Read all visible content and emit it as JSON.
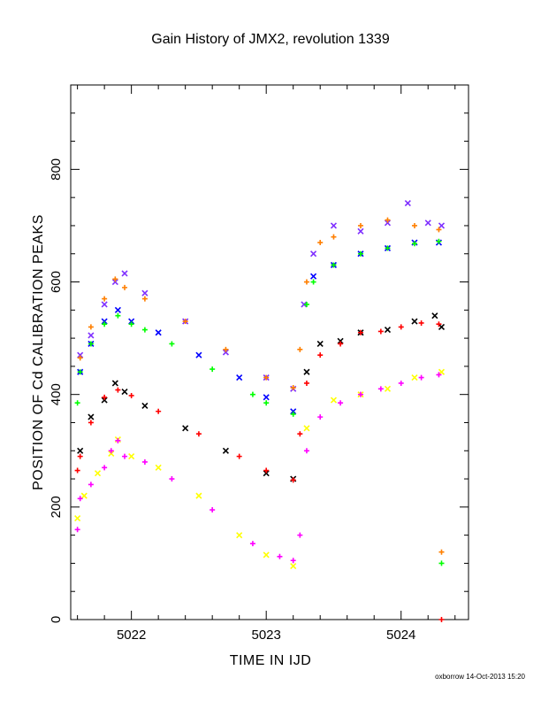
{
  "chart_data": {
    "type": "scatter",
    "title": "Gain History of JMX2, revolution 1339",
    "xlabel": "TIME IN IJD",
    "ylabel": "POSITION OF Cd CALIBRATION PEAKS",
    "xlim": [
      5021.55,
      5024.5
    ],
    "ylim": [
      0,
      950
    ],
    "x_ticks": [
      5022,
      5023,
      5024
    ],
    "y_ticks": [
      0,
      200,
      400,
      600,
      800
    ],
    "grid": false,
    "series": [
      {
        "color": "#7f2fff",
        "marker": "x",
        "points": [
          [
            5021.62,
            470
          ],
          [
            5021.7,
            505
          ],
          [
            5021.8,
            560
          ],
          [
            5021.88,
            600
          ],
          [
            5021.95,
            615
          ],
          [
            5022.1,
            580
          ],
          [
            5022.4,
            530
          ],
          [
            5022.7,
            475
          ],
          [
            5023.0,
            430
          ],
          [
            5023.2,
            410
          ],
          [
            5023.28,
            560
          ],
          [
            5023.35,
            650
          ],
          [
            5023.5,
            700
          ],
          [
            5023.7,
            690
          ],
          [
            5023.9,
            705
          ],
          [
            5024.05,
            740
          ],
          [
            5024.2,
            705
          ],
          [
            5024.3,
            700
          ]
        ]
      },
      {
        "color": "#ff7f00",
        "marker": "+",
        "points": [
          [
            5021.62,
            465
          ],
          [
            5021.7,
            520
          ],
          [
            5021.8,
            570
          ],
          [
            5021.88,
            605
          ],
          [
            5021.95,
            590
          ],
          [
            5022.1,
            570
          ],
          [
            5022.4,
            530
          ],
          [
            5022.7,
            480
          ],
          [
            5023.0,
            430
          ],
          [
            5023.2,
            412
          ],
          [
            5023.25,
            480
          ],
          [
            5023.3,
            600
          ],
          [
            5023.4,
            670
          ],
          [
            5023.5,
            680
          ],
          [
            5023.7,
            700
          ],
          [
            5023.9,
            710
          ],
          [
            5024.1,
            700
          ],
          [
            5024.28,
            693
          ],
          [
            5024.3,
            120
          ]
        ]
      },
      {
        "color": "#0000ff",
        "marker": "x",
        "points": [
          [
            5021.62,
            440
          ],
          [
            5021.7,
            490
          ],
          [
            5021.8,
            530
          ],
          [
            5021.9,
            550
          ],
          [
            5022.0,
            530
          ],
          [
            5022.2,
            510
          ],
          [
            5022.5,
            470
          ],
          [
            5022.8,
            430
          ],
          [
            5023.0,
            395
          ],
          [
            5023.2,
            370
          ],
          [
            5023.35,
            610
          ],
          [
            5023.5,
            630
          ],
          [
            5023.7,
            650
          ],
          [
            5023.9,
            660
          ],
          [
            5024.1,
            670
          ],
          [
            5024.28,
            670
          ]
        ]
      },
      {
        "color": "#00ff00",
        "marker": "+",
        "points": [
          [
            5021.6,
            385
          ],
          [
            5021.62,
            440
          ],
          [
            5021.7,
            490
          ],
          [
            5021.8,
            525
          ],
          [
            5021.9,
            540
          ],
          [
            5022.0,
            525
          ],
          [
            5022.1,
            515
          ],
          [
            5022.3,
            490
          ],
          [
            5022.6,
            445
          ],
          [
            5022.9,
            400
          ],
          [
            5023.0,
            385
          ],
          [
            5023.2,
            365
          ],
          [
            5023.3,
            560
          ],
          [
            5023.35,
            600
          ],
          [
            5023.5,
            630
          ],
          [
            5023.7,
            650
          ],
          [
            5023.9,
            660
          ],
          [
            5024.1,
            668
          ],
          [
            5024.28,
            672
          ],
          [
            5024.3,
            100
          ]
        ]
      },
      {
        "color": "#000000",
        "marker": "x",
        "points": [
          [
            5021.62,
            300
          ],
          [
            5021.7,
            360
          ],
          [
            5021.8,
            390
          ],
          [
            5021.88,
            420
          ],
          [
            5021.95,
            405
          ],
          [
            5022.1,
            380
          ],
          [
            5022.4,
            340
          ],
          [
            5022.7,
            300
          ],
          [
            5023.0,
            260
          ],
          [
            5023.2,
            250
          ],
          [
            5023.3,
            440
          ],
          [
            5023.4,
            490
          ],
          [
            5023.55,
            495
          ],
          [
            5023.7,
            510
          ],
          [
            5023.9,
            515
          ],
          [
            5024.1,
            530
          ],
          [
            5024.25,
            540
          ],
          [
            5024.3,
            520
          ]
        ]
      },
      {
        "color": "#ff0000",
        "marker": "+",
        "points": [
          [
            5021.6,
            265
          ],
          [
            5021.62,
            290
          ],
          [
            5021.7,
            350
          ],
          [
            5021.8,
            395
          ],
          [
            5021.9,
            408
          ],
          [
            5022.0,
            398
          ],
          [
            5022.2,
            370
          ],
          [
            5022.5,
            330
          ],
          [
            5022.8,
            290
          ],
          [
            5023.0,
            265
          ],
          [
            5023.2,
            248
          ],
          [
            5023.25,
            330
          ],
          [
            5023.3,
            420
          ],
          [
            5023.4,
            470
          ],
          [
            5023.55,
            490
          ],
          [
            5023.7,
            510
          ],
          [
            5023.85,
            512
          ],
          [
            5024.0,
            520
          ],
          [
            5024.15,
            527
          ],
          [
            5024.28,
            525
          ],
          [
            5024.3,
            0
          ]
        ]
      },
      {
        "color": "#ffff00",
        "marker": "x",
        "points": [
          [
            5021.6,
            180
          ],
          [
            5021.65,
            220
          ],
          [
            5021.75,
            260
          ],
          [
            5021.85,
            295
          ],
          [
            5021.9,
            320
          ],
          [
            5022.0,
            290
          ],
          [
            5022.2,
            270
          ],
          [
            5022.5,
            220
          ],
          [
            5022.8,
            150
          ],
          [
            5023.0,
            115
          ],
          [
            5023.2,
            95
          ],
          [
            5023.3,
            340
          ],
          [
            5023.5,
            390
          ],
          [
            5023.7,
            400
          ],
          [
            5023.9,
            410
          ],
          [
            5024.1,
            430
          ],
          [
            5024.3,
            440
          ]
        ]
      },
      {
        "color": "#ff00ff",
        "marker": "+",
        "points": [
          [
            5021.6,
            160
          ],
          [
            5021.62,
            215
          ],
          [
            5021.7,
            240
          ],
          [
            5021.8,
            270
          ],
          [
            5021.85,
            300
          ],
          [
            5021.9,
            318
          ],
          [
            5021.95,
            290
          ],
          [
            5022.1,
            280
          ],
          [
            5022.3,
            250
          ],
          [
            5022.6,
            195
          ],
          [
            5022.9,
            135
          ],
          [
            5023.1,
            112
          ],
          [
            5023.2,
            105
          ],
          [
            5023.25,
            150
          ],
          [
            5023.3,
            300
          ],
          [
            5023.4,
            360
          ],
          [
            5023.55,
            385
          ],
          [
            5023.7,
            400
          ],
          [
            5023.85,
            410
          ],
          [
            5024.0,
            420
          ],
          [
            5024.15,
            430
          ],
          [
            5024.28,
            435
          ]
        ]
      }
    ]
  },
  "footer": {
    "credit": "oxborrow 14-Oct-2013 15:20"
  }
}
